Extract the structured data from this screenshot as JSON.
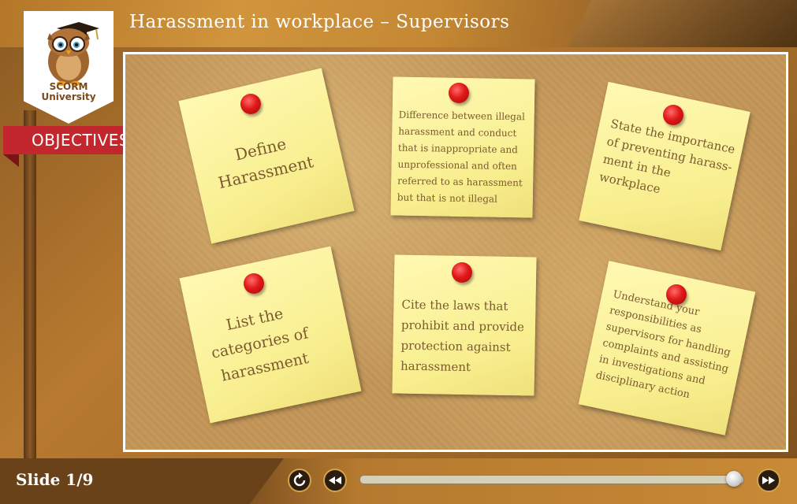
{
  "header": {
    "title": "Harassment in workplace – Supervisors"
  },
  "logo": {
    "line1": "SCORM",
    "line2": "University",
    "icon": "owl-icon"
  },
  "section": {
    "label": "OBJECTIVES"
  },
  "notes": [
    {
      "text": "Define\nHarassment"
    },
    {
      "text": "Difference between illegal\nharassment and conduct\nthat is inappropriate and\nunprofessional and often\nreferred to as harassment\nbut that is not illegal"
    },
    {
      "text": "State the importance\nof preventing harass-\nment in the workplace"
    },
    {
      "text": "List the\ncategories of\nharassment"
    },
    {
      "text": "Cite the laws that\nprohibit and provide\nprotection against\nharassment"
    },
    {
      "text": "Understand your\nresponsibilities as\nsupervisors for handling\ncomplaints and assisting\nin investigations and\ndisciplinary action"
    }
  ],
  "footer": {
    "slide_label": "Slide 1/9",
    "progress": 1.0,
    "controls": {
      "replay": "replay-icon",
      "rewind": "rewind-icon",
      "forward": "fast-forward-icon"
    }
  },
  "colors": {
    "ribbon": "#c1272d",
    "pin": "#e01818",
    "note": "#f8ee8e"
  }
}
